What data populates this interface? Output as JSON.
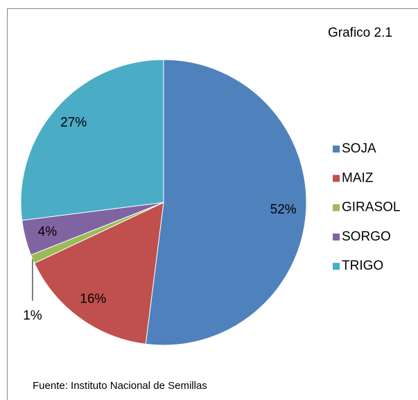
{
  "chart_data": {
    "type": "pie",
    "title": "Grafico 2.1",
    "categories": [
      "SOJA",
      "MAIZ",
      "GIRASOL",
      "SORGO",
      "TRIGO"
    ],
    "values": [
      52,
      16,
      1,
      4,
      27
    ],
    "value_labels": [
      "52%",
      "16%",
      "1%",
      "4%",
      "27%"
    ],
    "colors": [
      "#4f81bd",
      "#c0504d",
      "#9bbb59",
      "#8064a2",
      "#4bacc6"
    ],
    "legend": "right",
    "source": "Fuente: Instituto Nacional de Semillas"
  }
}
